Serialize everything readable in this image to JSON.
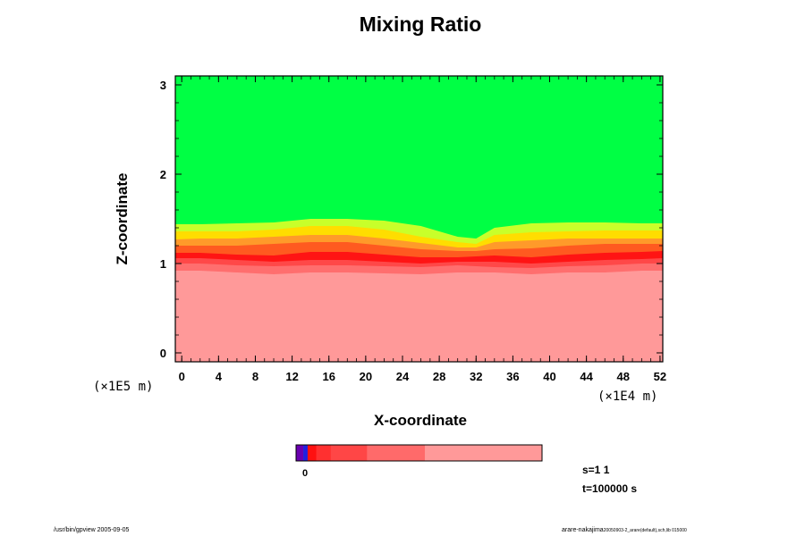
{
  "chart_data": {
    "type": "heatmap",
    "title": "Mixing Ratio",
    "xlabel": "X-coordinate",
    "ylabel": "Z-coordinate",
    "x_scale_label": "(×1E4 m)",
    "y_scale_label": "(×1E5 m)",
    "xlim": [
      -0.7,
      52.3
    ],
    "ylim": [
      -0.1,
      3.1
    ],
    "x_ticks": [
      "0",
      "4",
      "8",
      "12",
      "16",
      "20",
      "24",
      "28",
      "32",
      "36",
      "40",
      "44",
      "48",
      "52"
    ],
    "y_ticks": [
      "0",
      "1",
      "2",
      "3"
    ],
    "x_minor_step": 1,
    "y_minor_step": 0.2,
    "layers_description_values": "boundary heights (z, ×1E5 m) of colour bands at sampled x (×1E4 m)",
    "x_samples": [
      -0.7,
      2,
      6,
      10,
      14,
      18,
      22,
      26,
      30,
      32,
      34,
      38,
      42,
      46,
      50,
      52.3
    ],
    "bands": [
      {
        "color": "#ff9999",
        "top": [
          0.92,
          0.92,
          0.9,
          0.88,
          0.9,
          0.9,
          0.89,
          0.88,
          0.9,
          0.9,
          0.9,
          0.88,
          0.9,
          0.9,
          0.92,
          0.92
        ]
      },
      {
        "color": "#ff6e6e",
        "top": [
          1.0,
          1.0,
          0.98,
          0.97,
          0.98,
          0.98,
          0.97,
          0.96,
          0.98,
          0.97,
          0.96,
          0.95,
          0.97,
          0.98,
          1.0,
          1.0
        ]
      },
      {
        "color": "#ff4848",
        "top": [
          1.06,
          1.06,
          1.04,
          1.02,
          1.04,
          1.04,
          1.02,
          1.0,
          1.02,
          1.02,
          1.02,
          1.0,
          1.02,
          1.04,
          1.05,
          1.06
        ]
      },
      {
        "color": "#ff1414",
        "top": [
          1.12,
          1.12,
          1.1,
          1.09,
          1.13,
          1.13,
          1.1,
          1.07,
          1.07,
          1.08,
          1.09,
          1.07,
          1.1,
          1.12,
          1.13,
          1.14
        ]
      },
      {
        "color": "#ff5a20",
        "top": [
          1.2,
          1.2,
          1.2,
          1.22,
          1.24,
          1.24,
          1.2,
          1.16,
          1.14,
          1.14,
          1.16,
          1.17,
          1.2,
          1.22,
          1.22,
          1.22
        ]
      },
      {
        "color": "#ff9a2a",
        "top": [
          1.27,
          1.28,
          1.28,
          1.3,
          1.32,
          1.32,
          1.28,
          1.23,
          1.18,
          1.18,
          1.24,
          1.26,
          1.28,
          1.28,
          1.28,
          1.28
        ]
      },
      {
        "color": "#ffdd00",
        "top": [
          1.36,
          1.36,
          1.36,
          1.38,
          1.42,
          1.42,
          1.38,
          1.3,
          1.24,
          1.22,
          1.32,
          1.35,
          1.36,
          1.37,
          1.37,
          1.37
        ]
      },
      {
        "color": "#c8ff2a",
        "top": [
          1.44,
          1.44,
          1.45,
          1.46,
          1.5,
          1.5,
          1.48,
          1.42,
          1.3,
          1.28,
          1.4,
          1.45,
          1.46,
          1.46,
          1.45,
          1.45
        ]
      },
      {
        "color": "#00ff44",
        "top": [
          3.1,
          3.1,
          3.1,
          3.1,
          3.1,
          3.1,
          3.1,
          3.1,
          3.1,
          3.1,
          3.1,
          3.1,
          3.1,
          3.1,
          3.1,
          3.1
        ]
      }
    ],
    "colorbar": {
      "min_label": "0",
      "segments": [
        {
          "color": "#6a00b0",
          "weight": 1
        },
        {
          "color": "#2020e0",
          "weight": 0.6
        },
        {
          "color": "#ff1010",
          "weight": 1.2
        },
        {
          "color": "#ff3030",
          "weight": 2
        },
        {
          "color": "#ff4646",
          "weight": 5
        },
        {
          "color": "#ff6a6a",
          "weight": 8
        },
        {
          "color": "#ff9999",
          "weight": 16.2
        }
      ]
    }
  },
  "meta": {
    "s_label": "s=1 1",
    "t_label": "t=100000 s"
  },
  "footer": {
    "left": "/usr/bin/gpview 2005-09-05",
    "right_main": "arare-nakajima",
    "right_sub": "20050903-2_arare(default),sch,lib 015000"
  }
}
